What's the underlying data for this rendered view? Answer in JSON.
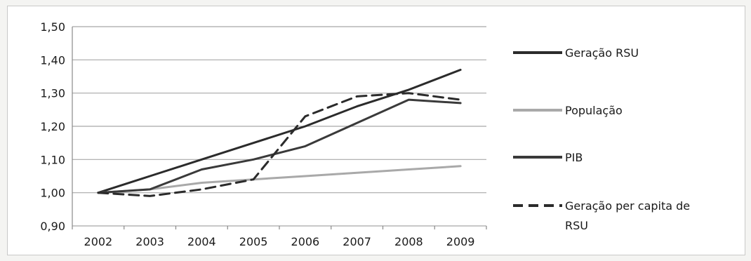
{
  "chart_data": {
    "type": "line",
    "x": [
      "2002",
      "2003",
      "2004",
      "2005",
      "2006",
      "2007",
      "2008",
      "2009"
    ],
    "ylim": [
      0.9,
      1.5
    ],
    "yticks": [
      "0,90",
      "1,00",
      "1,10",
      "1,20",
      "1,30",
      "1,40",
      "1,50"
    ],
    "grid": true,
    "legend_position": "right",
    "series": [
      {
        "name": "Geração RSU",
        "values": [
          1.0,
          1.05,
          1.1,
          1.15,
          1.2,
          1.26,
          1.31,
          1.37
        ],
        "color": "#2b2b2b",
        "style": "solid"
      },
      {
        "name": "População",
        "values": [
          1.0,
          1.01,
          1.03,
          1.04,
          1.05,
          1.06,
          1.07,
          1.08
        ],
        "color": "#a9a9a9",
        "style": "solid"
      },
      {
        "name": "PIB",
        "values": [
          1.0,
          1.01,
          1.07,
          1.1,
          1.14,
          1.21,
          1.28,
          1.27
        ],
        "color": "#3a3a3a",
        "style": "solid"
      },
      {
        "name_lines": [
          "Geração per capita de",
          "RSU"
        ],
        "name": "Geração per capita de RSU",
        "values": [
          1.0,
          0.99,
          1.01,
          1.04,
          1.23,
          1.29,
          1.3,
          1.28
        ],
        "color": "#2b2b2b",
        "style": "dashed"
      }
    ]
  }
}
